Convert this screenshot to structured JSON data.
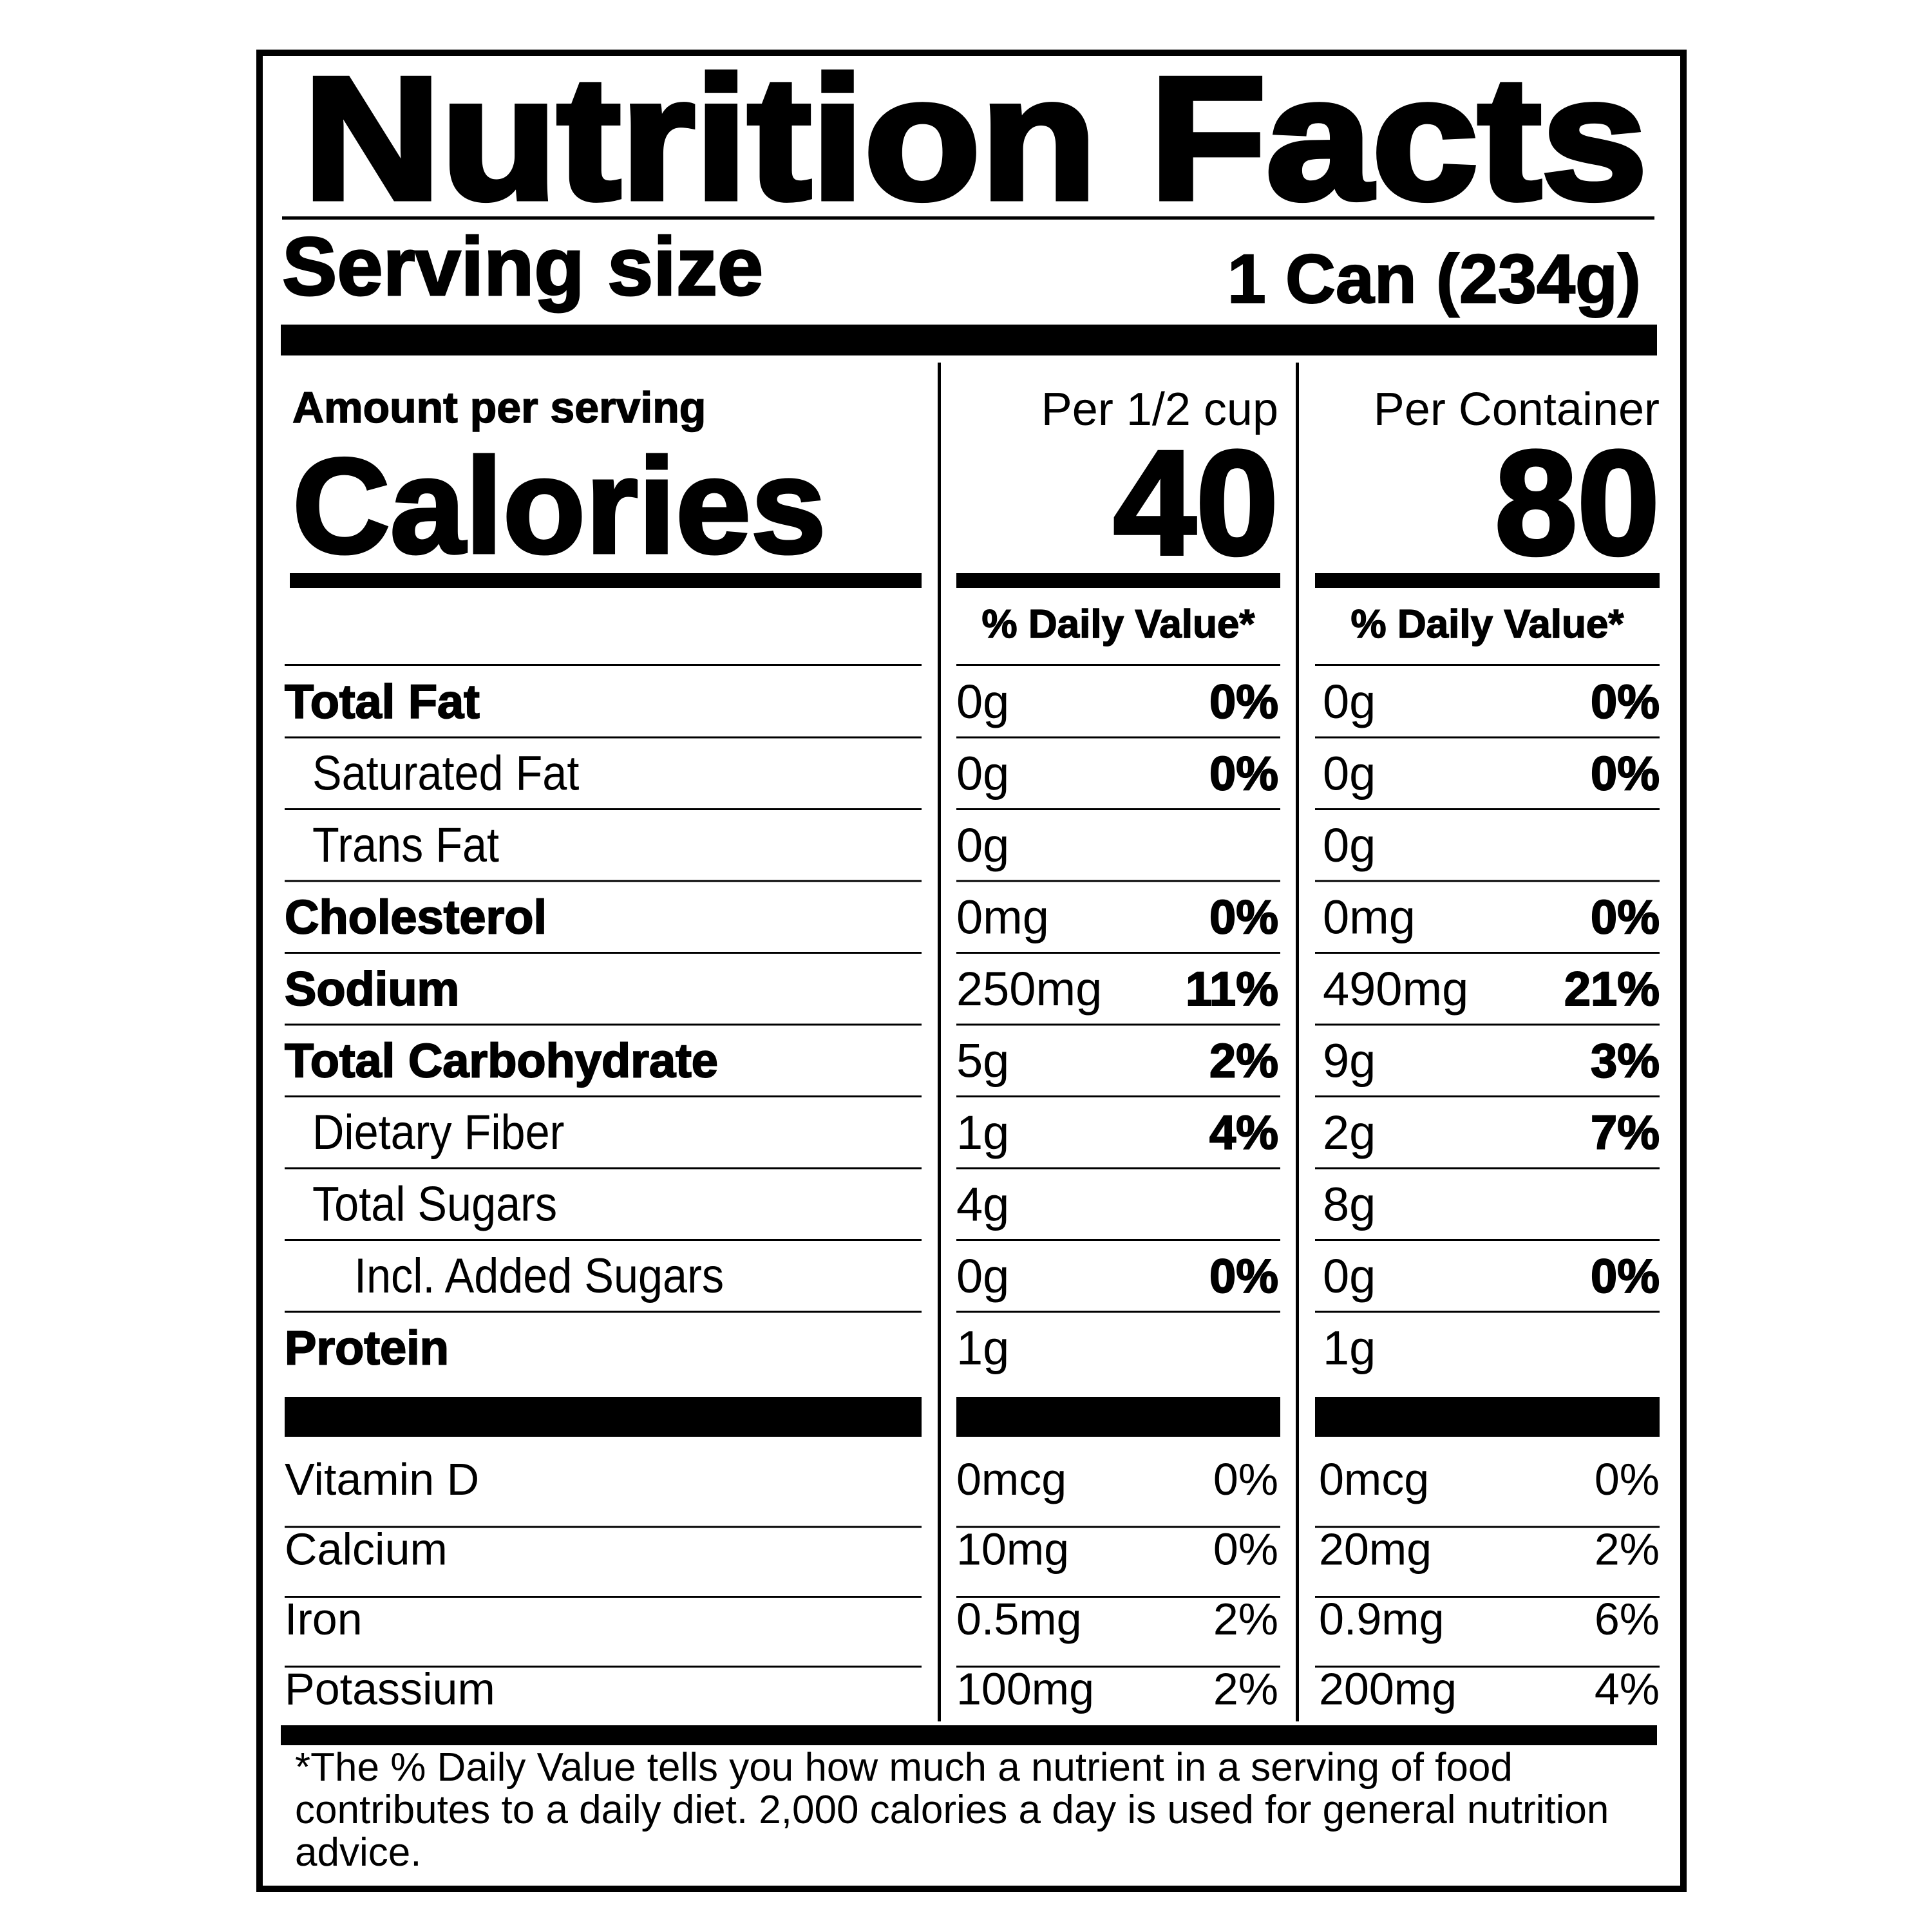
{
  "title": "Nutrition Facts",
  "serving": {
    "label": "Serving size",
    "value": "1 Can (234g)"
  },
  "amount_label": "Amount per serving",
  "calories_label": "Calories",
  "columns": [
    {
      "header": "Per 1/2 cup",
      "calories": 40,
      "dv_header": "% Daily Value*"
    },
    {
      "header": "Per Container",
      "calories": 80,
      "dv_header": "% Daily Value*"
    }
  ],
  "nutrients": [
    {
      "name": "Total Fat",
      "style": "bold",
      "indent": 0,
      "values": [
        {
          "amount": "0g",
          "dv": "0%"
        },
        {
          "amount": "0g",
          "dv": "0%"
        }
      ]
    },
    {
      "name": "Saturated Fat",
      "style": "regular",
      "indent": 1,
      "values": [
        {
          "amount": "0g",
          "dv": "0%"
        },
        {
          "amount": "0g",
          "dv": "0%"
        }
      ]
    },
    {
      "name": "Trans Fat",
      "style": "regular",
      "indent": 1,
      "values": [
        {
          "amount": "0g"
        },
        {
          "amount": "0g"
        }
      ]
    },
    {
      "name": "Cholesterol",
      "style": "bold",
      "indent": 0,
      "values": [
        {
          "amount": "0mg",
          "dv": "0%"
        },
        {
          "amount": "0mg",
          "dv": "0%"
        }
      ]
    },
    {
      "name": "Sodium",
      "style": "bold",
      "indent": 0,
      "values": [
        {
          "amount": "250mg",
          "dv": "11%"
        },
        {
          "amount": "490mg",
          "dv": "21%"
        }
      ]
    },
    {
      "name": "Total Carbohydrate",
      "style": "bold",
      "indent": 0,
      "values": [
        {
          "amount": "5g",
          "dv": "2%"
        },
        {
          "amount": "9g",
          "dv": "3%"
        }
      ]
    },
    {
      "name": "Dietary Fiber",
      "style": "regular",
      "indent": 1,
      "values": [
        {
          "amount": "1g",
          "dv": "4%"
        },
        {
          "amount": "2g",
          "dv": "7%"
        }
      ]
    },
    {
      "name": "Total Sugars",
      "style": "regular",
      "indent": 1,
      "values": [
        {
          "amount": "4g"
        },
        {
          "amount": "8g"
        }
      ]
    },
    {
      "name": "Incl. Added Sugars",
      "style": "regular",
      "indent": 2,
      "values": [
        {
          "amount": "0g",
          "dv": "0%"
        },
        {
          "amount": "0g",
          "dv": "0%"
        }
      ]
    },
    {
      "name": "Protein",
      "style": "bold",
      "indent": 0,
      "values": [
        {
          "amount": "1g"
        },
        {
          "amount": "1g"
        }
      ]
    }
  ],
  "vitamins": [
    {
      "name": "Vitamin D",
      "values": [
        {
          "amount": "0mcg",
          "dv": "0%"
        },
        {
          "amount": "0mcg",
          "dv": "0%"
        }
      ]
    },
    {
      "name": "Calcium",
      "values": [
        {
          "amount": "10mg",
          "dv": "0%"
        },
        {
          "amount": "20mg",
          "dv": "2%"
        }
      ]
    },
    {
      "name": "Iron",
      "values": [
        {
          "amount": "0.5mg",
          "dv": "2%"
        },
        {
          "amount": "0.9mg",
          "dv": "6%"
        }
      ]
    },
    {
      "name": "Potassium",
      "values": [
        {
          "amount": "100mg",
          "dv": "2%"
        },
        {
          "amount": "200mg",
          "dv": "4%"
        }
      ]
    }
  ],
  "footnote": [
    "*The % Daily Value tells you how much a nutrient in a serving of food",
    "contributes to a daily diet. 2,000 calories a day is used for general nutrition",
    "advice."
  ]
}
